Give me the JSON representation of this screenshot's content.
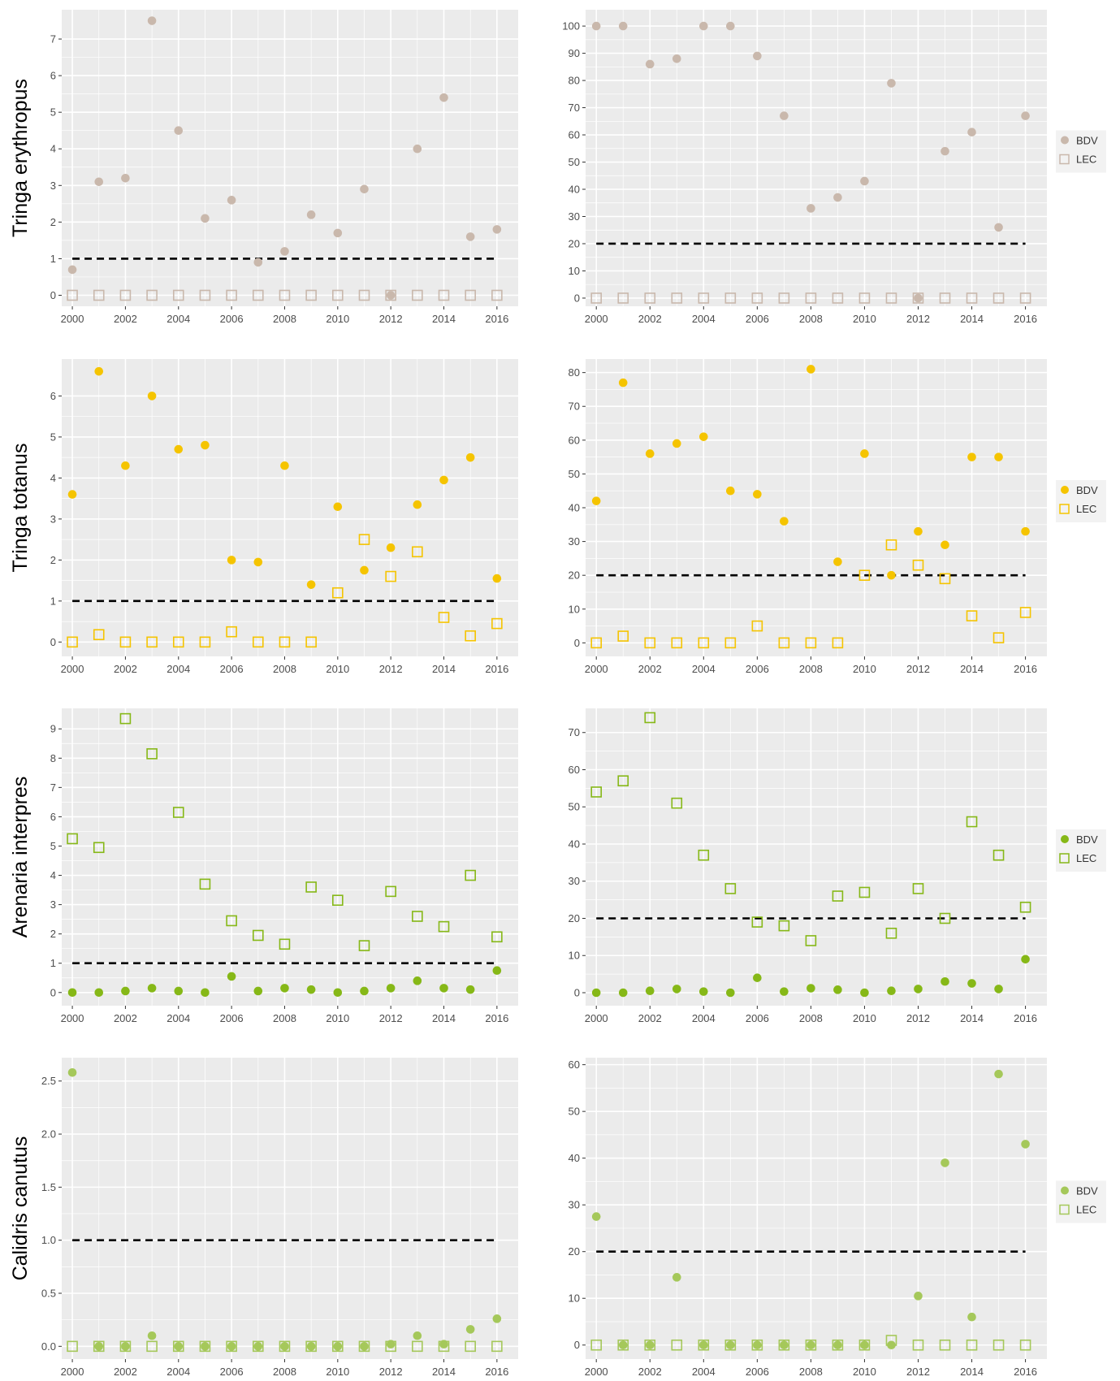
{
  "colors": {
    "panel_bg": "#EBEBEB",
    "grid": "#FFFFFF",
    "tick_text": "#4D4D4D",
    "threshold": "#000000"
  },
  "legend": {
    "placement": "right",
    "labels": [
      "BDV",
      "LEC"
    ]
  },
  "rows": [
    {
      "species": "Tringa erythropus",
      "color": "#C9B8AC"
    },
    {
      "species": "Tringa totanus",
      "color": "#F5C400"
    },
    {
      "species": "Arenaria interpres",
      "color": "#86B817"
    },
    {
      "species": "Calidris canutus",
      "color": "#A5C85A"
    }
  ],
  "chart_data": [
    {
      "type": "scatter",
      "row": 0,
      "col": 0,
      "x": [
        2000,
        2001,
        2002,
        2003,
        2004,
        2005,
        2006,
        2007,
        2008,
        2009,
        2010,
        2011,
        2012,
        2013,
        2014,
        2015,
        2016
      ],
      "xlim": [
        1999.6,
        2016.8
      ],
      "xticks": [
        2000,
        2002,
        2004,
        2006,
        2008,
        2010,
        2012,
        2014,
        2016
      ],
      "ylim": [
        -0.3,
        7.8
      ],
      "yticks": [
        0,
        1,
        2,
        3,
        4,
        5,
        6,
        7
      ],
      "ytick_labels": [
        "0",
        "1",
        "2",
        "3",
        "4",
        "5",
        "6",
        "7"
      ],
      "threshold": 1,
      "series": [
        {
          "name": "BDV",
          "marker": "circle",
          "values": [
            0.7,
            3.1,
            3.2,
            7.5,
            4.5,
            2.1,
            2.6,
            0.9,
            1.2,
            2.2,
            1.7,
            2.9,
            0,
            4.0,
            5.4,
            1.6,
            1.8
          ]
        },
        {
          "name": "LEC",
          "marker": "square",
          "values": [
            0,
            0,
            0,
            0,
            0,
            0,
            0,
            0,
            0,
            0,
            0,
            0,
            0,
            0,
            0,
            0,
            0
          ]
        }
      ]
    },
    {
      "type": "scatter",
      "row": 0,
      "col": 1,
      "x": [
        2000,
        2001,
        2002,
        2003,
        2004,
        2005,
        2006,
        2007,
        2008,
        2009,
        2010,
        2011,
        2012,
        2013,
        2014,
        2015,
        2016
      ],
      "xlim": [
        1999.6,
        2016.8
      ],
      "xticks": [
        2000,
        2002,
        2004,
        2006,
        2008,
        2010,
        2012,
        2014,
        2016
      ],
      "ylim": [
        -3,
        106
      ],
      "yticks": [
        0,
        10,
        20,
        30,
        40,
        50,
        60,
        70,
        80,
        90,
        100
      ],
      "ytick_labels": [
        "0",
        "10",
        "20",
        "30",
        "40",
        "50",
        "60",
        "70",
        "80",
        "90",
        "100"
      ],
      "threshold": 20,
      "series": [
        {
          "name": "BDV",
          "marker": "circle",
          "values": [
            100,
            100,
            86,
            88,
            100,
            100,
            89,
            67,
            33,
            37,
            43,
            79,
            0,
            54,
            61,
            26,
            67
          ]
        },
        {
          "name": "LEC",
          "marker": "square",
          "values": [
            0,
            0,
            0,
            0,
            0,
            0,
            0,
            0,
            0,
            0,
            0,
            0,
            0,
            0,
            0,
            0,
            0
          ]
        }
      ]
    },
    {
      "type": "scatter",
      "row": 1,
      "col": 0,
      "x": [
        2000,
        2001,
        2002,
        2003,
        2004,
        2005,
        2006,
        2007,
        2008,
        2009,
        2010,
        2011,
        2012,
        2013,
        2014,
        2015,
        2016
      ],
      "xlim": [
        1999.6,
        2016.8
      ],
      "xticks": [
        2000,
        2002,
        2004,
        2006,
        2008,
        2010,
        2012,
        2014,
        2016
      ],
      "ylim": [
        -0.35,
        6.9
      ],
      "yticks": [
        0,
        1,
        2,
        3,
        4,
        5,
        6
      ],
      "ytick_labels": [
        "0",
        "1",
        "2",
        "3",
        "4",
        "5",
        "6"
      ],
      "threshold": 1,
      "series": [
        {
          "name": "BDV",
          "marker": "circle",
          "values": [
            3.6,
            6.6,
            4.3,
            6.0,
            4.7,
            4.8,
            2.0,
            1.95,
            4.3,
            1.4,
            3.3,
            1.75,
            2.3,
            3.35,
            3.95,
            4.5,
            1.55
          ]
        },
        {
          "name": "LEC",
          "marker": "square",
          "values": [
            0,
            0.18,
            0,
            0,
            0,
            0,
            0.25,
            0,
            0,
            0,
            1.2,
            2.5,
            1.6,
            2.2,
            0.6,
            0.15,
            0.45
          ]
        }
      ]
    },
    {
      "type": "scatter",
      "row": 1,
      "col": 1,
      "x": [
        2000,
        2001,
        2002,
        2003,
        2004,
        2005,
        2006,
        2007,
        2008,
        2009,
        2010,
        2011,
        2012,
        2013,
        2014,
        2015,
        2016
      ],
      "xlim": [
        1999.6,
        2016.8
      ],
      "xticks": [
        2000,
        2002,
        2004,
        2006,
        2008,
        2010,
        2012,
        2014,
        2016
      ],
      "ylim": [
        -4,
        84
      ],
      "yticks": [
        0,
        10,
        20,
        30,
        40,
        50,
        60,
        70,
        80
      ],
      "ytick_labels": [
        "0",
        "10",
        "20",
        "30",
        "40",
        "50",
        "60",
        "70",
        "80"
      ],
      "threshold": 20,
      "series": [
        {
          "name": "BDV",
          "marker": "circle",
          "values": [
            42,
            77,
            56,
            59,
            61,
            45,
            44,
            36,
            81,
            24,
            56,
            20,
            33,
            29,
            55,
            55,
            33
          ]
        },
        {
          "name": "LEC",
          "marker": "square",
          "values": [
            0,
            2,
            0,
            0,
            0,
            0,
            5,
            0,
            0,
            0,
            20,
            29,
            23,
            19,
            8,
            1.5,
            9
          ]
        }
      ]
    },
    {
      "type": "scatter",
      "row": 2,
      "col": 0,
      "x": [
        2000,
        2001,
        2002,
        2003,
        2004,
        2005,
        2006,
        2007,
        2008,
        2009,
        2010,
        2011,
        2012,
        2013,
        2014,
        2015,
        2016
      ],
      "xlim": [
        1999.6,
        2016.8
      ],
      "xticks": [
        2000,
        2002,
        2004,
        2006,
        2008,
        2010,
        2012,
        2014,
        2016
      ],
      "ylim": [
        -0.45,
        9.7
      ],
      "yticks": [
        0,
        1,
        2,
        3,
        4,
        5,
        6,
        7,
        8,
        9
      ],
      "ytick_labels": [
        "0",
        "1",
        "2",
        "3",
        "4",
        "5",
        "6",
        "7",
        "8",
        "9"
      ],
      "threshold": 1,
      "series": [
        {
          "name": "BDV",
          "marker": "circle",
          "values": [
            0,
            0,
            0.05,
            0.15,
            0.05,
            0,
            0.55,
            0.05,
            0.15,
            0.1,
            0,
            0.05,
            0.15,
            0.4,
            0.15,
            0.1,
            0.75
          ]
        },
        {
          "name": "LEC",
          "marker": "square",
          "values": [
            5.25,
            4.95,
            9.35,
            8.15,
            6.15,
            3.7,
            2.45,
            1.95,
            1.65,
            3.6,
            3.15,
            1.6,
            3.45,
            2.6,
            2.25,
            4.0,
            1.9
          ]
        }
      ]
    },
    {
      "type": "scatter",
      "row": 2,
      "col": 1,
      "x": [
        2000,
        2001,
        2002,
        2003,
        2004,
        2005,
        2006,
        2007,
        2008,
        2009,
        2010,
        2011,
        2012,
        2013,
        2014,
        2015,
        2016
      ],
      "xlim": [
        1999.6,
        2016.8
      ],
      "xticks": [
        2000,
        2002,
        2004,
        2006,
        2008,
        2010,
        2012,
        2014,
        2016
      ],
      "ylim": [
        -3.5,
        76.5
      ],
      "yticks": [
        0,
        10,
        20,
        30,
        40,
        50,
        60,
        70
      ],
      "ytick_labels": [
        "0",
        "10",
        "20",
        "30",
        "40",
        "50",
        "60",
        "70"
      ],
      "threshold": 20,
      "series": [
        {
          "name": "BDV",
          "marker": "circle",
          "values": [
            0,
            0,
            0.5,
            1,
            0.3,
            0,
            4,
            0.3,
            1.2,
            0.8,
            0,
            0.5,
            1,
            3,
            2.5,
            1,
            9
          ]
        },
        {
          "name": "LEC",
          "marker": "square",
          "values": [
            54,
            57,
            74,
            51,
            37,
            28,
            19,
            18,
            14,
            26,
            27,
            16,
            28,
            20,
            46,
            37,
            23
          ]
        }
      ]
    },
    {
      "type": "scatter",
      "row": 3,
      "col": 0,
      "x": [
        2000,
        2001,
        2002,
        2003,
        2004,
        2005,
        2006,
        2007,
        2008,
        2009,
        2010,
        2011,
        2012,
        2013,
        2014,
        2015,
        2016
      ],
      "xlim": [
        1999.6,
        2016.8
      ],
      "xticks": [
        2000,
        2002,
        2004,
        2006,
        2008,
        2010,
        2012,
        2014,
        2016
      ],
      "ylim": [
        -0.12,
        2.72
      ],
      "yticks": [
        0,
        0.5,
        1,
        1.5,
        2,
        2.5
      ],
      "ytick_labels": [
        "0.0",
        "0.5",
        "1.0",
        "1.5",
        "2.0",
        "2.5"
      ],
      "threshold": 1,
      "series": [
        {
          "name": "BDV",
          "marker": "circle",
          "values": [
            2.58,
            0,
            0,
            0.1,
            0,
            0,
            0,
            0,
            0,
            0,
            0,
            0,
            0.02,
            0.1,
            0.02,
            0.16,
            0.26
          ]
        },
        {
          "name": "LEC",
          "marker": "square",
          "values": [
            0,
            0,
            0,
            0,
            0,
            0,
            0,
            0,
            0,
            0,
            0,
            0,
            0,
            0,
            0,
            0,
            0
          ]
        }
      ]
    },
    {
      "type": "scatter",
      "row": 3,
      "col": 1,
      "x": [
        2000,
        2001,
        2002,
        2003,
        2004,
        2005,
        2006,
        2007,
        2008,
        2009,
        2010,
        2011,
        2012,
        2013,
        2014,
        2015,
        2016
      ],
      "xlim": [
        1999.6,
        2016.8
      ],
      "xticks": [
        2000,
        2002,
        2004,
        2006,
        2008,
        2010,
        2012,
        2014,
        2016
      ],
      "ylim": [
        -3,
        61.5
      ],
      "yticks": [
        0,
        10,
        20,
        30,
        40,
        50,
        60
      ],
      "ytick_labels": [
        "0",
        "10",
        "20",
        "30",
        "40",
        "50",
        "60"
      ],
      "threshold": 20,
      "series": [
        {
          "name": "BDV",
          "marker": "circle",
          "values": [
            27.5,
            0,
            0,
            14.5,
            0,
            0,
            0,
            0,
            0,
            0,
            0,
            0,
            10.5,
            39,
            6,
            58,
            43
          ]
        },
        {
          "name": "LEC",
          "marker": "square",
          "values": [
            0,
            0,
            0,
            0,
            0,
            0,
            0,
            0,
            0,
            0,
            0,
            1,
            0,
            0,
            0,
            0,
            0
          ]
        }
      ]
    }
  ]
}
